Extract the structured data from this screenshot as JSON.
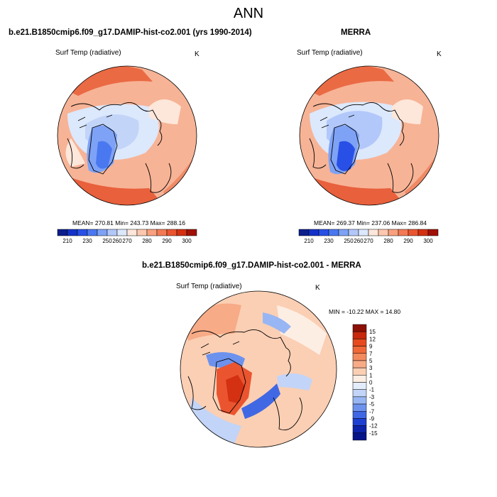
{
  "figure": {
    "title": "ANN"
  },
  "panels": [
    {
      "title": "b.e21.B1850cmip6.f09_g17.DAMIP-hist-co2.001 (yrs 1990-2014)",
      "variable": "Surf Temp (radiative)",
      "units": "K",
      "stats": "MEAN= 270.81  Min= 243.73  Max= 288.16"
    },
    {
      "title": "MERRA",
      "variable": "Surf Temp (radiative)",
      "units": "K",
      "stats": "MEAN= 269.37  Min= 237.06  Max= 286.84"
    },
    {
      "title": "b.e21.B1850cmip6.f09_g17.DAMIP-hist-co2.001 - MERRA",
      "variable": "Surf Temp (radiative)",
      "units": "K",
      "stats": "MIN = -10.22 MAX =  14.80"
    }
  ],
  "colorbar_abs": {
    "labels": [
      "210",
      "230",
      "250",
      "260",
      "270",
      "280",
      "290",
      "300"
    ],
    "colors": [
      "#0a1e8c",
      "#1432c8",
      "#2850e6",
      "#4a78f0",
      "#7ea2f5",
      "#b2c8fa",
      "#dce8fc",
      "#fde7da",
      "#fcc8ae",
      "#f9a07e",
      "#f37a55",
      "#ea5530",
      "#d43012",
      "#a01006"
    ]
  },
  "colorbar_diff": {
    "labels": [
      "15",
      "12",
      "9",
      "7",
      "5",
      "3",
      "1",
      "0",
      "-1",
      "-3",
      "-5",
      "-7",
      "-9",
      "-12",
      "-15"
    ],
    "colors": [
      "#8c1006",
      "#c8280e",
      "#e64a1e",
      "#f06838",
      "#f38a5e",
      "#f7ab86",
      "#fbcfb4",
      "#fdeee4",
      "#e4edfc",
      "#c2d4f8",
      "#98b6f3",
      "#6c92ee",
      "#4068e4",
      "#1e40d2",
      "#0c22aa",
      "#06148a"
    ]
  },
  "colors": {
    "ocean_warm": "#f39a76",
    "land_cold": "#b8cef8",
    "coast": "#000000"
  }
}
